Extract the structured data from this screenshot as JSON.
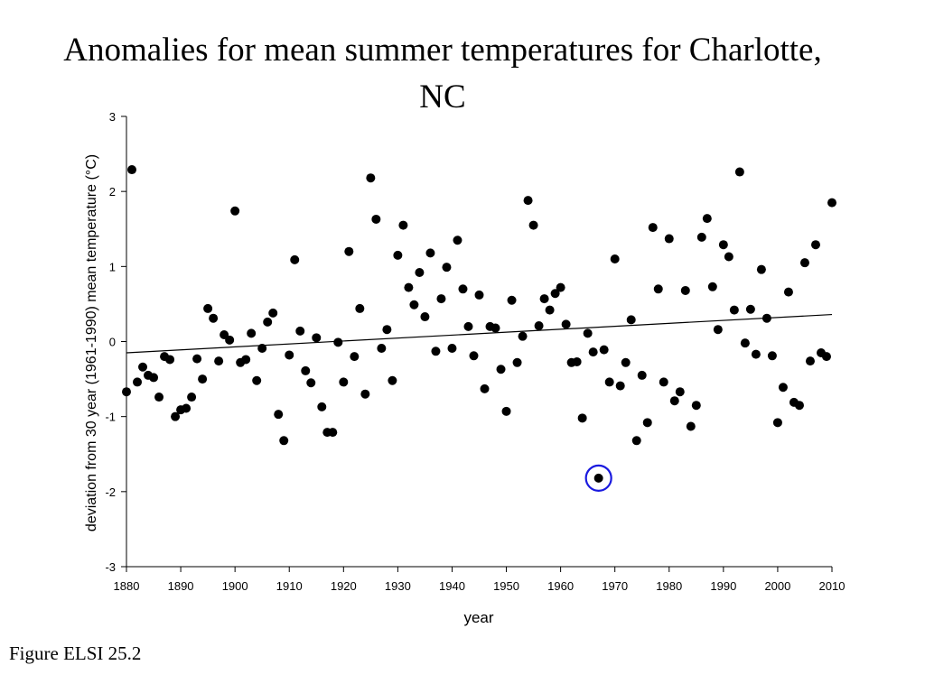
{
  "page": {
    "title": "Anomalies for mean summer temperatures for Charlotte, NC",
    "caption": "Figure ELSI 25.2"
  },
  "chart_data": {
    "type": "scatter",
    "title": "Anomalies for mean summer temperatures for Charlotte, NC",
    "xlabel": "year",
    "ylabel": "deviation from 30 year (1961-1990) mean temperature (°C)",
    "xlim": [
      1880,
      2010
    ],
    "ylim": [
      -3,
      3
    ],
    "xticks": [
      1880,
      1890,
      1900,
      1910,
      1920,
      1930,
      1940,
      1950,
      1960,
      1970,
      1980,
      1990,
      2000,
      2010
    ],
    "yticks": [
      -3,
      -2,
      -1,
      0,
      1,
      2,
      3
    ],
    "grid": false,
    "point_color": "#000000",
    "series": [
      {
        "x": [
          1880,
          1881,
          1882,
          1883,
          1884,
          1885,
          1886,
          1887,
          1888,
          1889,
          1890,
          1891,
          1892,
          1893,
          1894,
          1895,
          1896,
          1897,
          1898,
          1899,
          1900,
          1901,
          1902,
          1903,
          1904,
          1905,
          1906,
          1907,
          1908,
          1909,
          1910,
          1911,
          1912,
          1913,
          1914,
          1915,
          1916,
          1917,
          1918,
          1919,
          1920,
          1921,
          1922,
          1923,
          1924,
          1925,
          1926,
          1927,
          1928,
          1929,
          1930,
          1931,
          1932,
          1933,
          1934,
          1935,
          1936,
          1937,
          1938,
          1939,
          1940,
          1941,
          1942,
          1943,
          1944,
          1945,
          1946,
          1947,
          1948,
          1949,
          1950,
          1951,
          1952,
          1953,
          1954,
          1955,
          1956,
          1957,
          1958,
          1959,
          1960,
          1961,
          1962,
          1963,
          1964,
          1965,
          1966,
          1967,
          1968,
          1969,
          1970,
          1971,
          1972,
          1973,
          1974,
          1975,
          1976,
          1977,
          1978,
          1979,
          1980,
          1981,
          1982,
          1983,
          1984,
          1985,
          1986,
          1987,
          1988,
          1989,
          1990,
          1991,
          1992,
          1993,
          1994,
          1995,
          1996,
          1997,
          1998,
          1999,
          2000,
          2001,
          2002,
          2003,
          2004,
          2005,
          2006,
          2007,
          2008,
          2009,
          2010
        ],
        "y": [
          -0.67,
          2.29,
          -0.54,
          -0.34,
          -0.45,
          -0.48,
          -0.74,
          -0.2,
          -0.24,
          -1.0,
          -0.91,
          -0.89,
          -0.74,
          -0.23,
          -0.5,
          0.44,
          0.31,
          -0.26,
          0.09,
          0.02,
          1.74,
          -0.28,
          -0.24,
          0.11,
          -0.52,
          -0.09,
          0.26,
          0.38,
          -0.97,
          -1.32,
          -0.18,
          1.09,
          0.14,
          -0.39,
          -0.55,
          0.05,
          -0.87,
          -1.21,
          -1.21,
          -0.01,
          -0.54,
          1.2,
          -0.2,
          0.44,
          -0.7,
          2.18,
          1.63,
          -0.09,
          0.16,
          -0.52,
          1.15,
          1.55,
          0.72,
          0.49,
          0.92,
          0.33,
          1.18,
          -0.13,
          0.57,
          0.99,
          -0.09,
          1.35,
          0.7,
          0.2,
          -0.19,
          0.62,
          -0.63,
          0.2,
          0.18,
          -0.37,
          -0.93,
          0.55,
          -0.28,
          0.07,
          1.88,
          1.55,
          0.21,
          0.57,
          0.42,
          0.64,
          0.72,
          0.23,
          -0.28,
          -0.27,
          -1.02,
          0.11,
          -0.14,
          -1.82,
          -0.11,
          -0.54,
          1.1,
          -0.59,
          -0.28,
          0.29,
          -1.32,
          -0.45,
          -1.08,
          1.52,
          0.7,
          -0.54,
          1.37,
          -0.79,
          -0.67,
          0.68,
          -1.13,
          -0.85,
          1.39,
          1.64,
          0.73,
          0.16,
          1.29,
          1.13,
          0.42,
          2.26,
          -0.02,
          0.43,
          -0.17,
          0.96,
          0.31,
          -0.19,
          -1.08,
          -0.61,
          0.66,
          -0.81,
          -0.85,
          1.05,
          -0.26,
          1.29,
          -0.15,
          -0.2,
          1.85
        ]
      }
    ],
    "trendline": {
      "x": [
        1880,
        2010
      ],
      "y": [
        -0.15,
        0.36
      ]
    },
    "highlight": {
      "x": 1967,
      "y": -1.82,
      "color": "#1a1adf"
    }
  }
}
